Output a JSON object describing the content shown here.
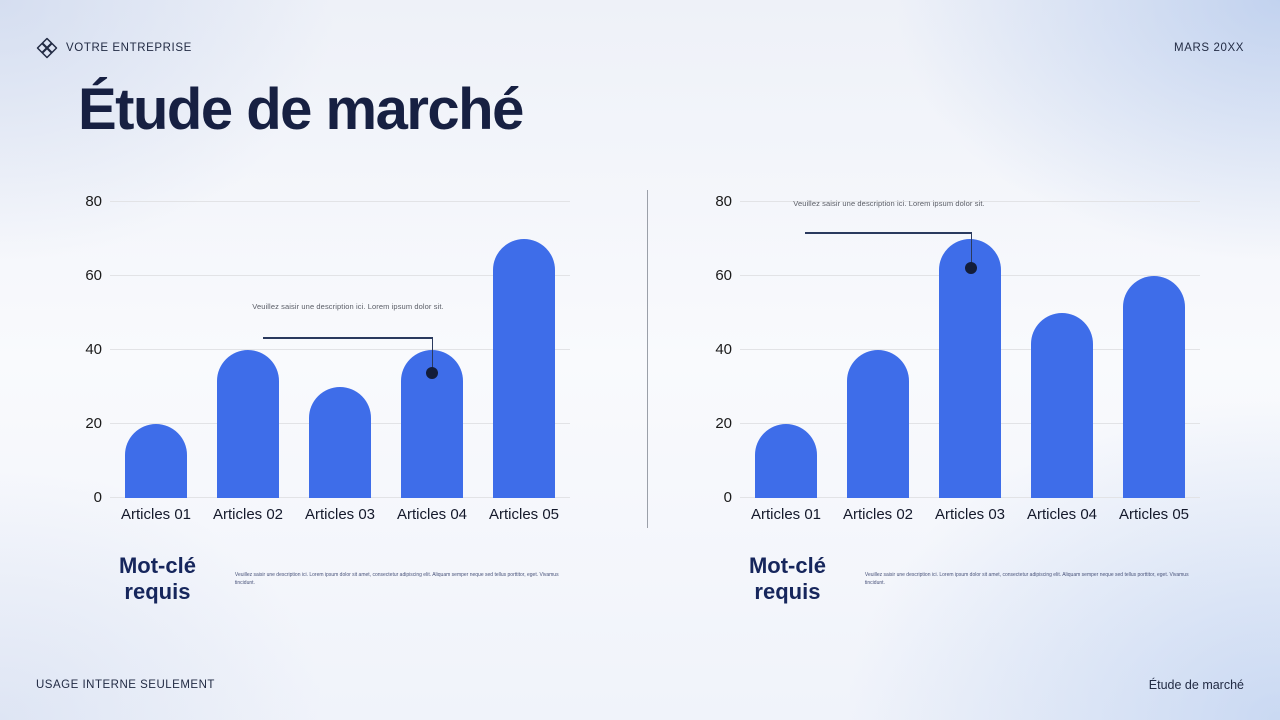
{
  "header": {
    "brand": "VOTRE ENTREPRISE",
    "date": "MARS 20XX"
  },
  "title": "Étude de marché",
  "charts": [
    {
      "annotation": "Veuillez saisir une description ici. Lorem ipsum dolor sit.",
      "keyword_title": "Mot-clé requis",
      "keyword_description": "Veuillez saisir une description ici. Lorem ipsum dolor sit amet, consectetur adipiscing elit. Aliquam semper neque sed tellus porttitor, eget. Vivamus tincidunt."
    },
    {
      "annotation": "Veuillez saisir une description ici. Lorem ipsum dolor sit.",
      "keyword_title": "Mot-clé requis",
      "keyword_description": "Veuillez saisir une description ici. Lorem ipsum dolor sit amet, consectetur adipiscing elit. Aliquam semper neque sed tellus porttitor, eget. Vivamus tincidunt."
    }
  ],
  "chart_data": [
    {
      "type": "bar",
      "categories": [
        "Articles 01",
        "Articles 02",
        "Articles 03",
        "Articles 04",
        "Articles 05"
      ],
      "values": [
        20,
        40,
        30,
        40,
        70
      ],
      "title": "",
      "xlabel": "",
      "ylabel": "",
      "ylim": [
        0,
        80
      ],
      "yticks": [
        0,
        20,
        40,
        60,
        80
      ],
      "grid": true,
      "legend": "none",
      "bar_color": "#3e6de9",
      "annotation_text": "Veuillez saisir une description ici. Lorem ipsum dolor sit.",
      "annotation_target_category": "Articles 04"
    },
    {
      "type": "bar",
      "categories": [
        "Articles 01",
        "Articles 02",
        "Articles 03",
        "Articles 04",
        "Articles 05"
      ],
      "values": [
        20,
        40,
        70,
        50,
        60
      ],
      "title": "",
      "xlabel": "",
      "ylabel": "",
      "ylim": [
        0,
        80
      ],
      "yticks": [
        0,
        20,
        40,
        60,
        80
      ],
      "grid": true,
      "legend": "none",
      "bar_color": "#3e6de9",
      "annotation_text": "Veuillez saisir une description ici. Lorem ipsum dolor sit.",
      "annotation_target_category": "Articles 03"
    }
  ],
  "footer": {
    "left": "USAGE INTERNE SEULEMENT",
    "right": "Étude de marché"
  },
  "colors": {
    "bar_blue": "#3e6de9",
    "navy_text": "#172042",
    "gridline": "#e2e3e6",
    "callout_line": "#2a3a5e",
    "callout_dot": "#131d3a",
    "background_tint": "#c9d5ee"
  }
}
